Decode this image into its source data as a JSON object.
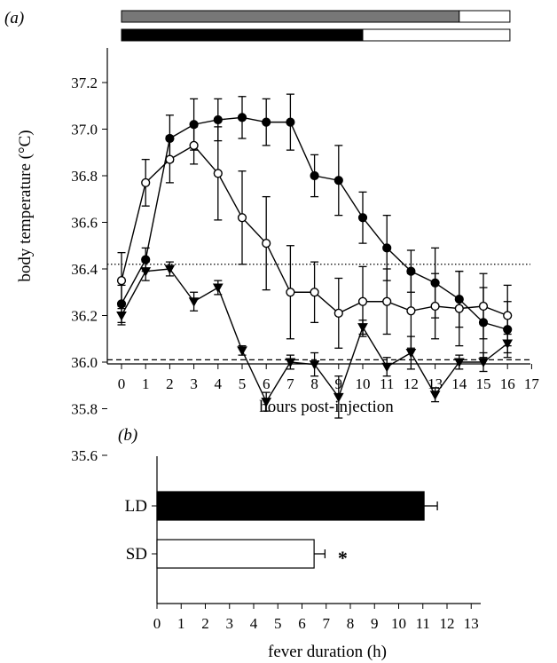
{
  "chart_data": [
    {
      "panel_label": "(a)",
      "type": "line",
      "xlabel": "hours post-injection",
      "ylabel": "body temperature (°C)",
      "xlim": [
        0,
        17
      ],
      "ylim": [
        35.6,
        37.3
      ],
      "x_ticks": [
        "0",
        "1",
        "2",
        "3",
        "4",
        "5",
        "6",
        "7",
        "8",
        "9",
        "10",
        "11",
        "12",
        "13",
        "14",
        "15",
        "16",
        "17"
      ],
      "y_ticks": [
        "35.6",
        "35.8",
        "36.0",
        "36.2",
        "36.4",
        "36.6",
        "36.8",
        "37.0",
        "37.2"
      ],
      "x": [
        0,
        1,
        2,
        3,
        4,
        5,
        6,
        7,
        8,
        9,
        10,
        11,
        12,
        13,
        14,
        15,
        16
      ],
      "series": [
        {
          "marker": "filled-circle",
          "values": [
            36.25,
            36.44,
            36.96,
            37.02,
            37.04,
            37.05,
            37.03,
            37.03,
            36.8,
            36.78,
            36.62,
            36.49,
            36.39,
            36.34,
            36.27,
            36.17,
            36.14
          ],
          "errors": [
            0.08,
            0.05,
            0.1,
            0.11,
            0.09,
            0.09,
            0.1,
            0.12,
            0.09,
            0.15,
            0.11,
            0.14,
            0.09,
            0.15,
            0.12,
            0.15,
            0.12
          ]
        },
        {
          "marker": "open-circle",
          "values": [
            36.35,
            36.77,
            36.87,
            36.93,
            36.81,
            36.62,
            36.51,
            36.3,
            36.3,
            36.21,
            36.26,
            36.26,
            36.22,
            36.24,
            36.23,
            36.24,
            36.2
          ],
          "errors": [
            0.12,
            0.1,
            0.1,
            0.08,
            0.2,
            0.2,
            0.2,
            0.2,
            0.13,
            0.15,
            0.15,
            0.14,
            0.16,
            0.14,
            0.16,
            0.14,
            0.13
          ]
        },
        {
          "marker": "filled-triangle-down",
          "values": [
            36.2,
            36.39,
            36.4,
            36.26,
            36.32,
            36.05,
            35.83,
            36.0,
            35.99,
            35.85,
            36.15,
            35.98,
            36.04,
            35.86,
            36.0,
            36.0,
            36.08
          ],
          "errors": [
            0.04,
            0.04,
            0.03,
            0.04,
            0.03,
            0.02,
            0.04,
            0.03,
            0.05,
            0.09,
            0.03,
            0.04,
            0.07,
            0.03,
            0.03,
            0.04,
            0.04
          ]
        }
      ],
      "reference_lines": [
        {
          "style": "dotted",
          "y": 36.42
        },
        {
          "style": "dashed",
          "y": 36.01
        }
      ],
      "duration_bars": [
        {
          "fill": "#777777",
          "x_start": 0,
          "x_split": 14,
          "x_end": 16.1
        },
        {
          "fill": "#000000",
          "x_start": 0,
          "x_split": 10,
          "x_end": 16.1
        }
      ]
    },
    {
      "panel_label": "(b)",
      "type": "bar",
      "orientation": "horizontal",
      "xlabel": "fever duration (h)",
      "xlim": [
        0,
        13
      ],
      "x_ticks": [
        "0",
        "1",
        "2",
        "3",
        "4",
        "5",
        "6",
        "7",
        "8",
        "9",
        "10",
        "11",
        "12",
        "13"
      ],
      "categories": [
        "LD",
        "SD"
      ],
      "values": [
        11.05,
        6.5
      ],
      "errors": [
        0.55,
        0.45
      ],
      "bar_fills": [
        "#000000",
        "#ffffff"
      ],
      "annotations": [
        {
          "category": "SD",
          "text": "*"
        }
      ]
    }
  ]
}
